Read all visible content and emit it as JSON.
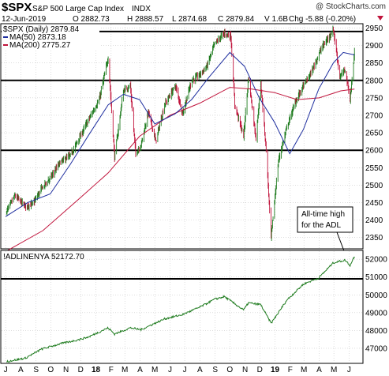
{
  "header": {
    "symbol": "$SPX",
    "name": "S&P 500 Large Cap Index",
    "exchange": "INDX",
    "watermark": "@ StockCharts.com",
    "date": "12-Jun-2019",
    "open": "O 2882.73",
    "high": "H 2888.57",
    "low": "L 2874.68",
    "close": "C 2879.84",
    "volume": "V 1.6B",
    "change": "Chg -5.88 (-0.20%)",
    "change_arrow_color": "#c0143c"
  },
  "legend": {
    "price": "$SPX (Daily) 2879.84",
    "ma50": "MA(50) 2873.18",
    "ma200": "MA(200) 2775.27",
    "adl": "!ADLINENYA 52172.70"
  },
  "annotation": {
    "line1": "All-time high",
    "line2": "for the ADL"
  },
  "colors": {
    "up_bar": "#1e7b1e",
    "down_bar": "#c0143c",
    "ma50": "#1f2f9f",
    "ma200": "#c0143c",
    "adl": "#1e7b1e",
    "grid": "#c8c8c8",
    "level": "#000000"
  },
  "chart_data": [
    {
      "type": "line",
      "title": "$SPX S&P 500 Large Cap Index INDX",
      "ylim": [
        2320,
        2960
      ],
      "y_ticks": [
        "2950",
        "2900",
        "2850",
        "2800",
        "2750",
        "2700",
        "2650",
        "2600",
        "2550",
        "2500",
        "2450",
        "2400",
        "2350"
      ],
      "horizontal_levels": [
        2940,
        2800,
        2600
      ],
      "series": [
        {
          "name": "$SPX (Daily)",
          "points": [
            [
              "2017-07-01",
              2420
            ],
            [
              "2017-07-20",
              2470
            ],
            [
              "2017-08-10",
              2440
            ],
            [
              "2017-08-25",
              2445
            ],
            [
              "2017-09-12",
              2490
            ],
            [
              "2017-09-30",
              2520
            ],
            [
              "2017-10-20",
              2565
            ],
            [
              "2017-11-10",
              2585
            ],
            [
              "2017-11-30",
              2640
            ],
            [
              "2017-12-18",
              2690
            ],
            [
              "2018-01-08",
              2745
            ],
            [
              "2018-01-26",
              2865
            ],
            [
              "2018-02-08",
              2580
            ],
            [
              "2018-02-26",
              2770
            ],
            [
              "2018-03-12",
              2785
            ],
            [
              "2018-03-23",
              2590
            ],
            [
              "2018-04-03",
              2615
            ],
            [
              "2018-04-18",
              2710
            ],
            [
              "2018-05-03",
              2625
            ],
            [
              "2018-05-21",
              2730
            ],
            [
              "2018-06-12",
              2785
            ],
            [
              "2018-06-27",
              2705
            ],
            [
              "2018-07-15",
              2800
            ],
            [
              "2018-07-31",
              2815
            ],
            [
              "2018-08-15",
              2840
            ],
            [
              "2018-08-31",
              2905
            ],
            [
              "2018-09-20",
              2935
            ],
            [
              "2018-10-03",
              2925
            ],
            [
              "2018-10-11",
              2730
            ],
            [
              "2018-10-29",
              2640
            ],
            [
              "2018-11-08",
              2810
            ],
            [
              "2018-11-23",
              2635
            ],
            [
              "2018-12-03",
              2790
            ],
            [
              "2018-12-14",
              2600
            ],
            [
              "2018-12-24",
              2350
            ],
            [
              "2019-01-08",
              2570
            ],
            [
              "2019-01-25",
              2665
            ],
            [
              "2019-02-12",
              2740
            ],
            [
              "2019-02-28",
              2785
            ],
            [
              "2019-03-15",
              2820
            ],
            [
              "2019-04-05",
              2890
            ],
            [
              "2019-04-30",
              2945
            ],
            [
              "2019-05-13",
              2810
            ],
            [
              "2019-05-24",
              2830
            ],
            [
              "2019-06-03",
              2745
            ],
            [
              "2019-06-12",
              2880
            ]
          ]
        },
        {
          "name": "MA(50)",
          "points": [
            [
              "2017-07-01",
              2410
            ],
            [
              "2017-08-15",
              2450
            ],
            [
              "2017-09-30",
              2475
            ],
            [
              "2017-11-10",
              2560
            ],
            [
              "2017-12-18",
              2645
            ],
            [
              "2018-01-26",
              2730
            ],
            [
              "2018-02-26",
              2760
            ],
            [
              "2018-03-31",
              2745
            ],
            [
              "2018-05-01",
              2675
            ],
            [
              "2018-06-12",
              2705
            ],
            [
              "2018-07-15",
              2745
            ],
            [
              "2018-08-20",
              2810
            ],
            [
              "2018-10-01",
              2880
            ],
            [
              "2018-10-31",
              2840
            ],
            [
              "2018-11-30",
              2750
            ],
            [
              "2018-12-31",
              2680
            ],
            [
              "2019-01-31",
              2590
            ],
            [
              "2019-02-28",
              2660
            ],
            [
              "2019-03-31",
              2775
            ],
            [
              "2019-04-30",
              2850
            ],
            [
              "2019-05-20",
              2880
            ],
            [
              "2019-06-12",
              2873
            ]
          ]
        },
        {
          "name": "MA(200)",
          "points": [
            [
              "2017-07-01",
              2310
            ],
            [
              "2017-09-15",
              2370
            ],
            [
              "2017-12-01",
              2465
            ],
            [
              "2018-01-26",
              2535
            ],
            [
              "2018-03-31",
              2640
            ],
            [
              "2018-06-01",
              2700
            ],
            [
              "2018-08-01",
              2735
            ],
            [
              "2018-10-01",
              2780
            ],
            [
              "2018-11-15",
              2775
            ],
            [
              "2018-12-31",
              2765
            ],
            [
              "2019-02-15",
              2745
            ],
            [
              "2019-04-01",
              2750
            ],
            [
              "2019-05-15",
              2770
            ],
            [
              "2019-06-12",
              2775
            ]
          ]
        }
      ]
    },
    {
      "type": "line",
      "title": "!ADLINENYA 52172.70",
      "ylim": [
        46200,
        52450
      ],
      "y_ticks": [
        "52000",
        "51000",
        "50000",
        "49000",
        "48000",
        "47000"
      ],
      "horizontal_levels": [
        50900
      ],
      "series": [
        {
          "name": "!ADLINENYA",
          "points": [
            [
              "2017-07-01",
              46250
            ],
            [
              "2017-08-10",
              46450
            ],
            [
              "2017-09-12",
              46950
            ],
            [
              "2017-10-20",
              47250
            ],
            [
              "2017-11-30",
              47500
            ],
            [
              "2017-12-18",
              47650
            ],
            [
              "2018-01-26",
              48150
            ],
            [
              "2018-02-08",
              47800
            ],
            [
              "2018-03-12",
              48150
            ],
            [
              "2018-04-03",
              48050
            ],
            [
              "2018-05-21",
              48650
            ],
            [
              "2018-06-27",
              48900
            ],
            [
              "2018-07-31",
              49300
            ],
            [
              "2018-08-31",
              49750
            ],
            [
              "2018-09-20",
              49900
            ],
            [
              "2018-10-11",
              49500
            ],
            [
              "2018-10-29",
              49150
            ],
            [
              "2018-11-08",
              49550
            ],
            [
              "2018-12-03",
              49450
            ],
            [
              "2018-12-24",
              48400
            ],
            [
              "2019-01-25",
              49700
            ],
            [
              "2019-02-28",
              50600
            ],
            [
              "2019-03-31",
              50950
            ],
            [
              "2019-04-30",
              51800
            ],
            [
              "2019-05-24",
              51950
            ],
            [
              "2019-06-03",
              51650
            ],
            [
              "2019-06-12",
              52170
            ]
          ]
        }
      ]
    }
  ],
  "x_axis": {
    "ticks": [
      {
        "label": "J",
        "date": "2017-07-01",
        "bold": false
      },
      {
        "label": "A",
        "date": "2017-08-01",
        "bold": false
      },
      {
        "label": "S",
        "date": "2017-09-01",
        "bold": false
      },
      {
        "label": "O",
        "date": "2017-10-01",
        "bold": false
      },
      {
        "label": "N",
        "date": "2017-11-01",
        "bold": false
      },
      {
        "label": "D",
        "date": "2017-12-01",
        "bold": false
      },
      {
        "label": "18",
        "date": "2018-01-01",
        "bold": true
      },
      {
        "label": "F",
        "date": "2018-02-01",
        "bold": false
      },
      {
        "label": "M",
        "date": "2018-03-01",
        "bold": false
      },
      {
        "label": "A",
        "date": "2018-04-01",
        "bold": false
      },
      {
        "label": "M",
        "date": "2018-05-01",
        "bold": false
      },
      {
        "label": "J",
        "date": "2018-06-01",
        "bold": false
      },
      {
        "label": "J",
        "date": "2018-07-01",
        "bold": false
      },
      {
        "label": "A",
        "date": "2018-08-01",
        "bold": false
      },
      {
        "label": "S",
        "date": "2018-09-01",
        "bold": false
      },
      {
        "label": "O",
        "date": "2018-10-01",
        "bold": false
      },
      {
        "label": "N",
        "date": "2018-11-01",
        "bold": false
      },
      {
        "label": "D",
        "date": "2018-12-01",
        "bold": false
      },
      {
        "label": "19",
        "date": "2019-01-01",
        "bold": true
      },
      {
        "label": "F",
        "date": "2019-02-01",
        "bold": false
      },
      {
        "label": "M",
        "date": "2019-03-01",
        "bold": false
      },
      {
        "label": "A",
        "date": "2019-04-01",
        "bold": false
      },
      {
        "label": "M",
        "date": "2019-05-01",
        "bold": false
      },
      {
        "label": "J",
        "date": "2019-06-01",
        "bold": false
      }
    ]
  }
}
